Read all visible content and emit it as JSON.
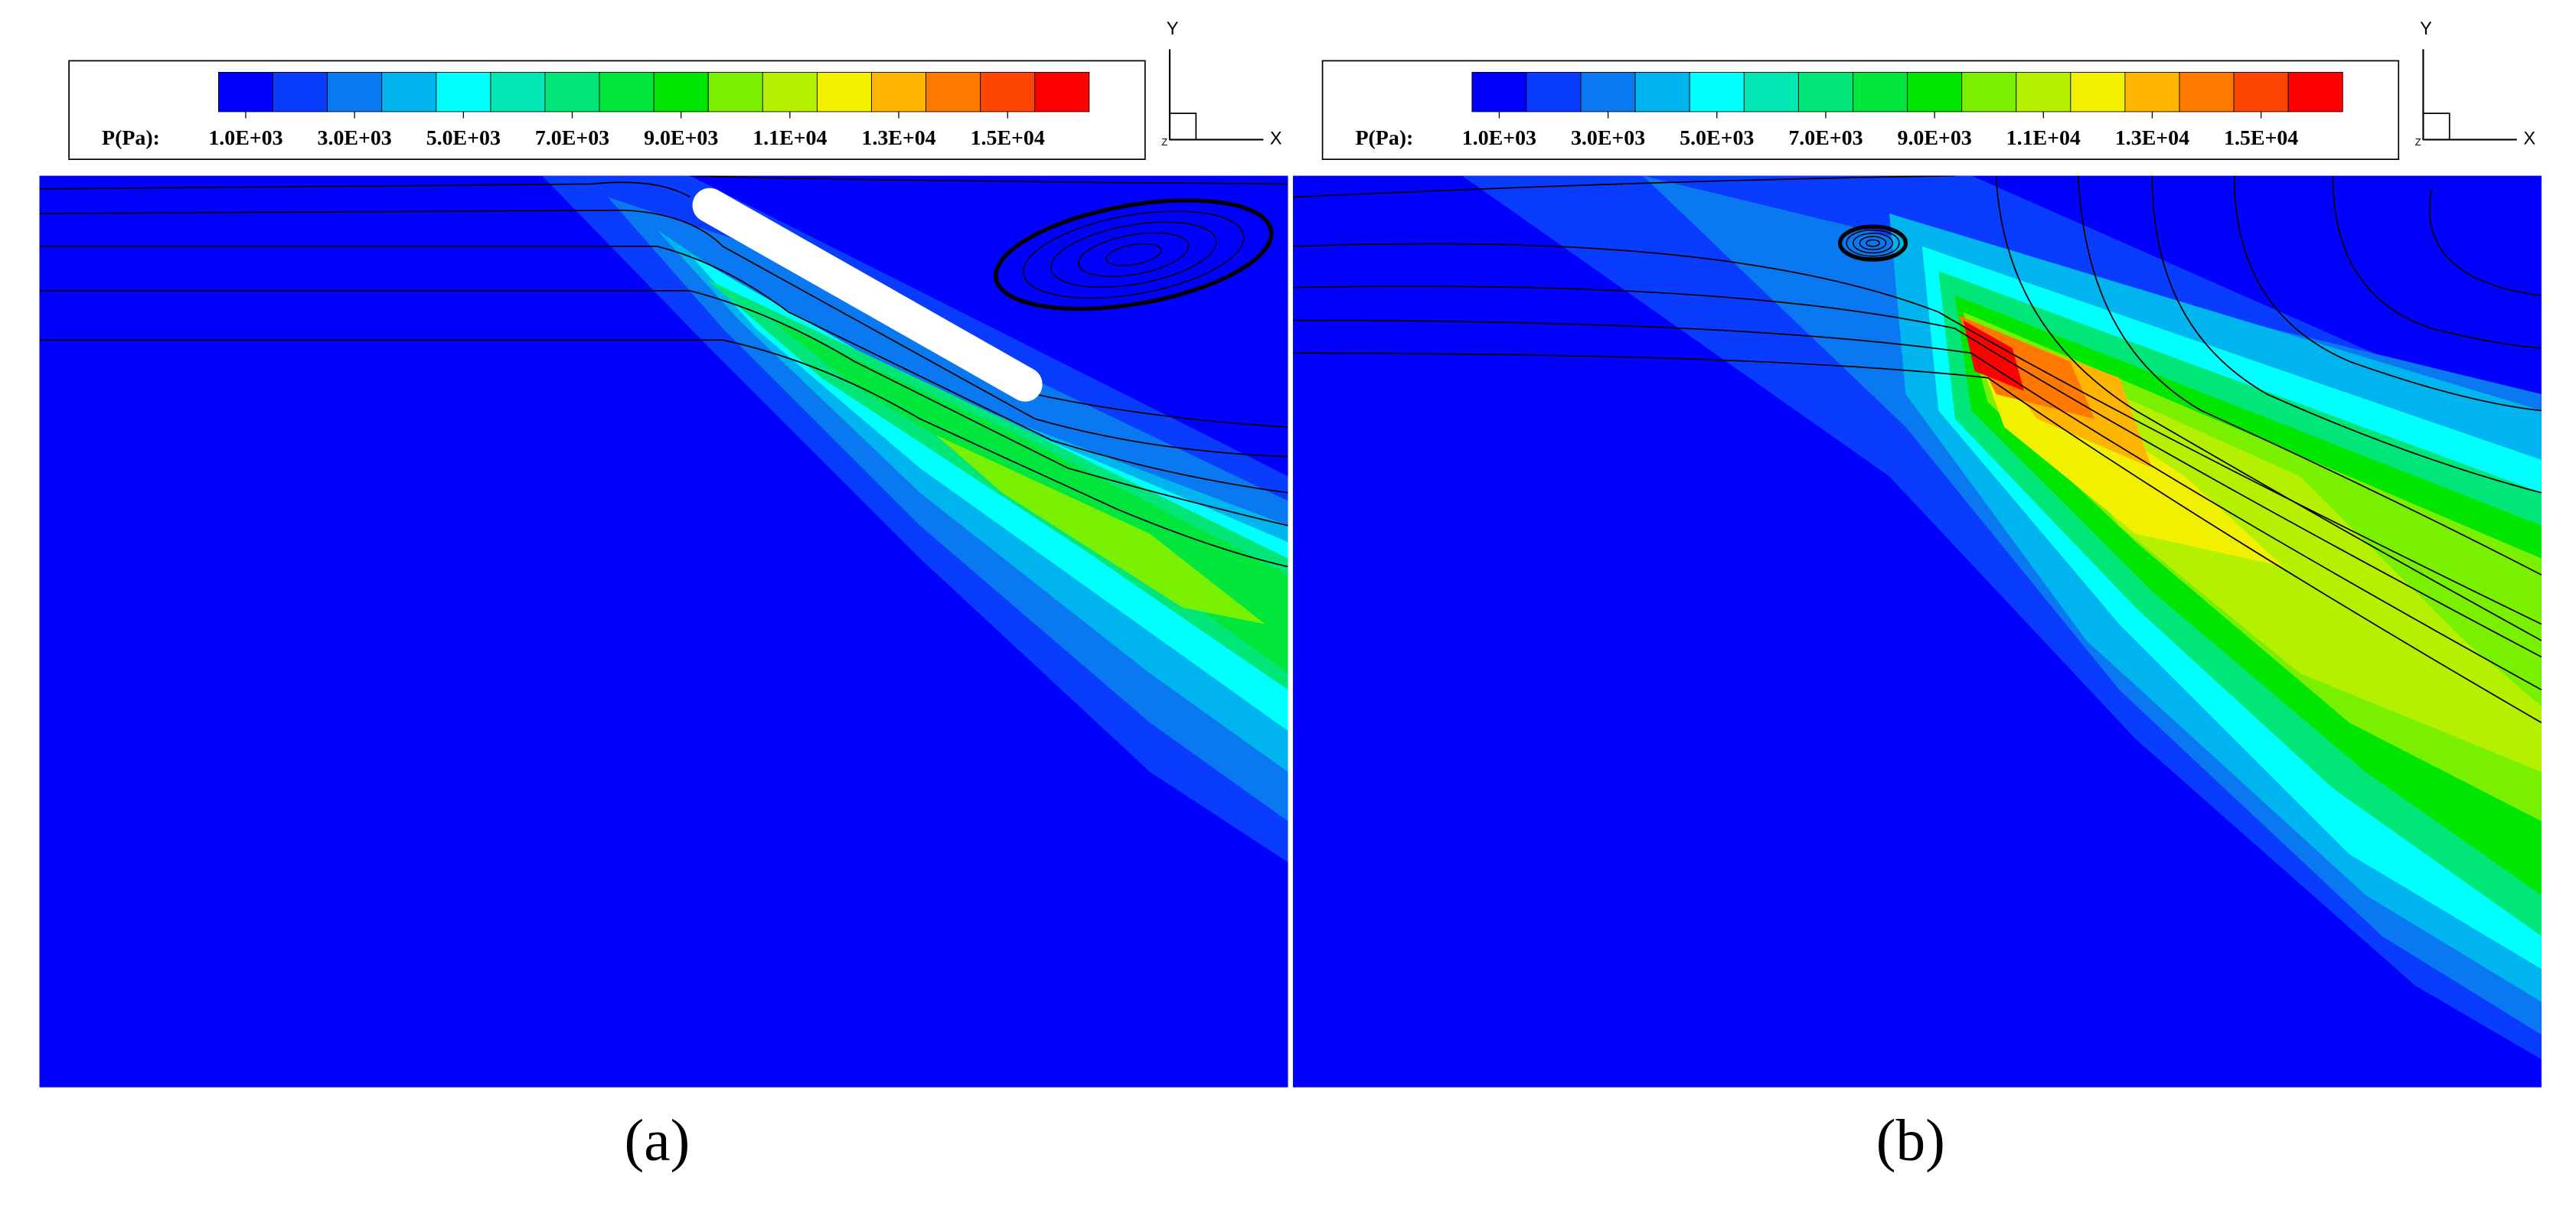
{
  "panels": [
    {
      "label": "(a)",
      "colorbar": {
        "title": "P(Pa):",
        "lim": [
          500,
          16500
        ],
        "ticks": [
          {
            "value": 1000,
            "label": "1.0E+03"
          },
          {
            "value": 3000,
            "label": "3.0E+03"
          },
          {
            "value": 5000,
            "label": "5.0E+03"
          },
          {
            "value": 7000,
            "label": "7.0E+03"
          },
          {
            "value": 9000,
            "label": "9.0E+03"
          },
          {
            "value": 11000,
            "label": "1.1E+04"
          },
          {
            "value": 13000,
            "label": "1.3E+04"
          },
          {
            "value": 15000,
            "label": "1.5E+04"
          }
        ],
        "colors": [
          "#0000ff",
          "#0a3cff",
          "#0a78f0",
          "#00b4f0",
          "#00ffff",
          "#00e6b4",
          "#00e678",
          "#00e63c",
          "#00e600",
          "#78f000",
          "#b4f000",
          "#f0f000",
          "#ffb400",
          "#ff7800",
          "#ff4600",
          "#ff0000"
        ]
      },
      "axes": {
        "x": "X",
        "y": "Y",
        "z": "Z"
      }
    },
    {
      "label": "(b)",
      "colorbar": {
        "title": "P(Pa):",
        "lim": [
          500,
          16500
        ],
        "ticks": [
          {
            "value": 1000,
            "label": "1.0E+03"
          },
          {
            "value": 3000,
            "label": "3.0E+03"
          },
          {
            "value": 5000,
            "label": "5.0E+03"
          },
          {
            "value": 7000,
            "label": "7.0E+03"
          },
          {
            "value": 9000,
            "label": "9.0E+03"
          },
          {
            "value": 11000,
            "label": "1.1E+04"
          },
          {
            "value": 13000,
            "label": "1.3E+04"
          },
          {
            "value": 15000,
            "label": "1.5E+04"
          }
        ],
        "colors": [
          "#0000ff",
          "#0a3cff",
          "#0a78f0",
          "#00b4f0",
          "#00ffff",
          "#00e6b4",
          "#00e678",
          "#00e63c",
          "#00e600",
          "#78f000",
          "#b4f000",
          "#f0f000",
          "#ffb400",
          "#ff7800",
          "#ff4600",
          "#ff0000"
        ]
      },
      "axes": {
        "x": "X",
        "y": "Y",
        "z": "Z"
      }
    }
  ]
}
